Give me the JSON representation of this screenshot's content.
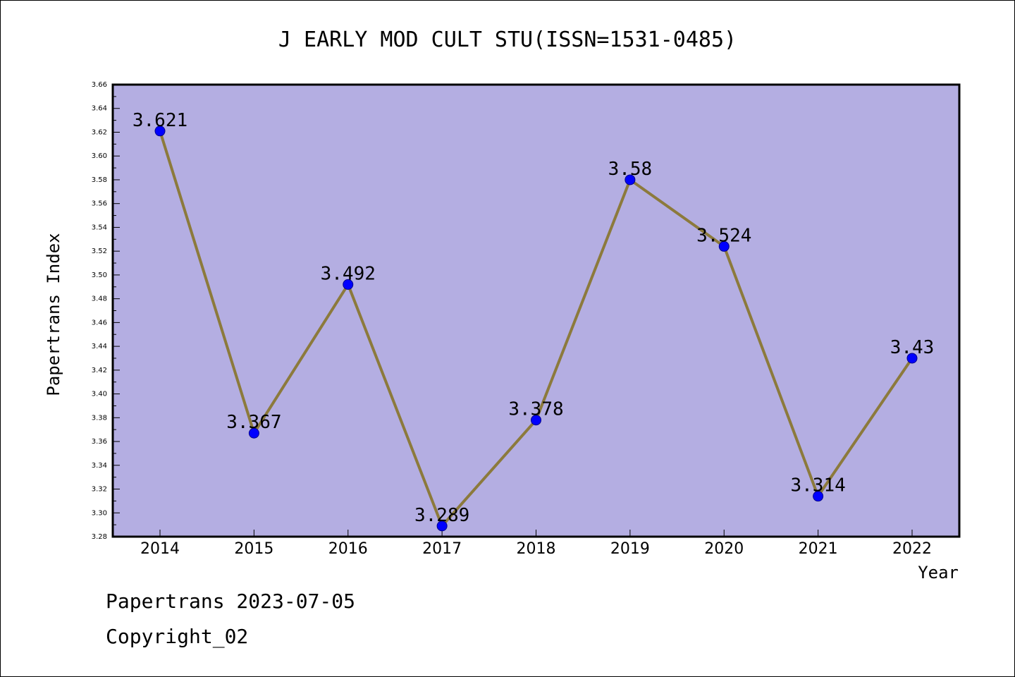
{
  "chart_data": {
    "type": "line",
    "title": "J EARLY MOD CULT STU(ISSN=1531-0485)",
    "xlabel": "Year",
    "ylabel": "Papertrans Index",
    "categories": [
      "2014",
      "2015",
      "2016",
      "2017",
      "2018",
      "2019",
      "2020",
      "2021",
      "2022"
    ],
    "series": [
      {
        "values": [
          3.621,
          3.367,
          3.492,
          3.289,
          3.378,
          3.58,
          3.524,
          3.314,
          3.43
        ]
      }
    ],
    "data_labels": [
      "3.621",
      "3.367",
      "3.492",
      "3.289",
      "3.378",
      "3.58",
      "3.524",
      "3.314",
      "3.43"
    ],
    "ylim": [
      3.28,
      3.66
    ],
    "yticks": [
      "3.28",
      "3.30",
      "3.32",
      "3.34",
      "3.36",
      "3.38",
      "3.40",
      "3.42",
      "3.44",
      "3.46",
      "3.48",
      "3.50",
      "3.52",
      "3.54",
      "3.56",
      "3.58",
      "3.60",
      "3.62",
      "3.64",
      "3.66"
    ],
    "grid": false,
    "colors": {
      "plot_bg": "#b4aee2",
      "line": "#8c7a3c",
      "marker": "#0000ff",
      "marker_edge": "#00008b"
    }
  },
  "footer": {
    "line1": "Papertrans 2023-07-05",
    "line2": "Copyright_02"
  }
}
